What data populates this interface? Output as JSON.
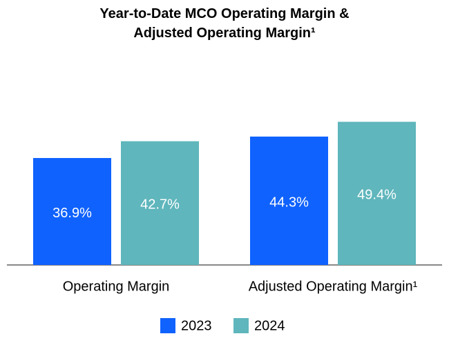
{
  "chart_data": {
    "type": "bar",
    "title": "Year-to-Date MCO Operating Margin & Adjusted Operating Margin¹",
    "categories": [
      "Operating Margin",
      "Adjusted Operating Margin¹"
    ],
    "series": [
      {
        "name": "2023",
        "color": "#0f62fe",
        "values": [
          36.9,
          44.3
        ],
        "value_labels": [
          "36.9%",
          "44.3%"
        ]
      },
      {
        "name": "2024",
        "color": "#5fb6bc",
        "values": [
          42.7,
          49.4
        ],
        "value_labels": [
          "42.7%",
          "49.4%"
        ]
      }
    ]
  }
}
